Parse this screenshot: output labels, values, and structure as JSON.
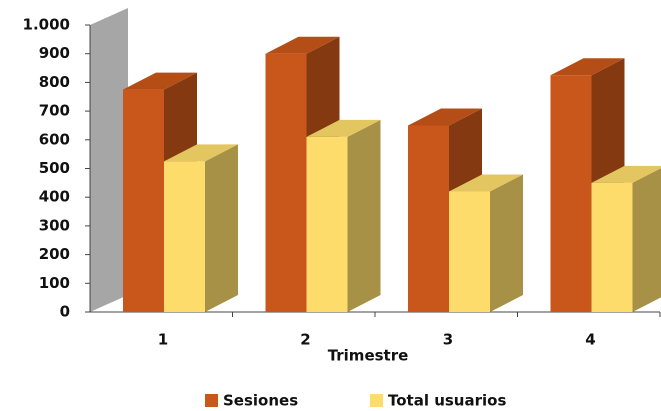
{
  "chart_data": {
    "type": "bar3d",
    "categories": [
      "1",
      "2",
      "3",
      "4"
    ],
    "x_label": "Trimestre",
    "series": [
      {
        "name": "Sesiones",
        "color": "#c9561a",
        "values": [
          775,
          900,
          650,
          825
        ]
      },
      {
        "name": "Total usuarios",
        "color": "#fddc6c",
        "values": [
          525,
          610,
          420,
          450
        ]
      }
    ],
    "ylim": [
      0,
      1000
    ],
    "yticks": [
      0,
      100,
      200,
      300,
      400,
      500,
      600,
      700,
      800,
      900,
      {
        "value": 1000,
        "label": "1.000"
      }
    ]
  }
}
